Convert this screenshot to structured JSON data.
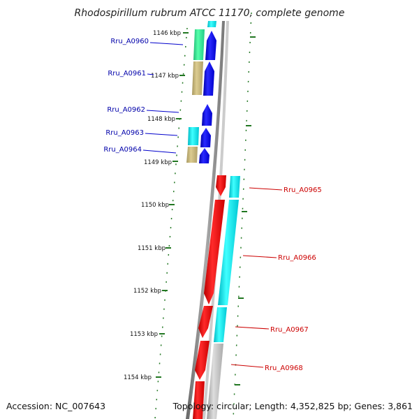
{
  "title": "Rhodospirillum rubrum ATCC 11170, complete genome",
  "accession": "Accession: NC_007643",
  "topology": "Topology: circular; Length: 4,352,825 bp; Genes: 3,861",
  "kbp_ticks": [
    "1146 kbp",
    "1147 kbp",
    "1148 kbp",
    "1149 kbp",
    "1150 kbp",
    "1151 kbp",
    "1152 kbp",
    "1153 kbp",
    "1154 kbp"
  ],
  "genes_left": [
    "Rru_A0960",
    "Rru_A0961",
    "Rru_A0962",
    "Rru_A0963",
    "Rru_A0964"
  ],
  "genes_right": [
    "Rru_A0965",
    "Rru_A0966",
    "Rru_A0967",
    "Rru_A0968"
  ],
  "colors": {
    "forward_strand": "#0000ee",
    "reverse_strand": "#ee0000",
    "cog_cyan": "#00e5ee",
    "cog_green": "#33ee99",
    "cog_khaki": "#c8b878",
    "cog_gray": "#bbbbbb",
    "backbone": "#888888",
    "tick_marks": "#227722",
    "left_label": "#0000aa",
    "right_label": "#cc0000"
  }
}
